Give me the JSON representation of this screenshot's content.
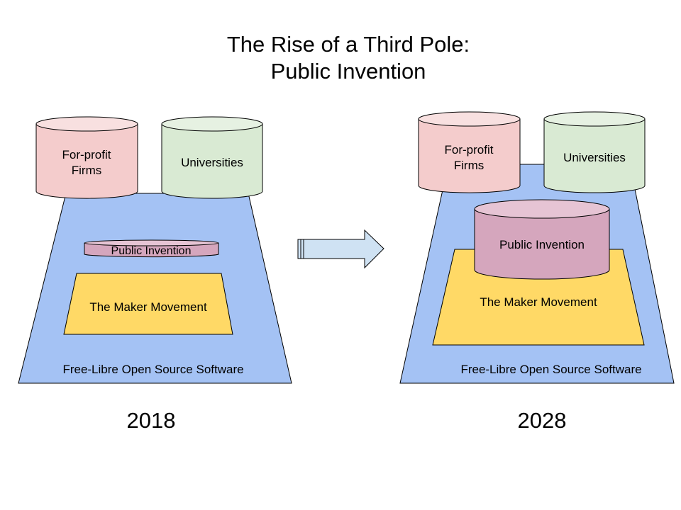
{
  "title": {
    "line1": "The Rise of a Third Pole:",
    "line2": "Public Invention"
  },
  "colors": {
    "foss_fill": "#a4c2f4",
    "maker_fill": "#ffd966",
    "public_invention_fill": "#d5a6bd",
    "for_profit_fill": "#f4cccc",
    "universities_fill": "#d9ead3",
    "arrow_fill": "#cfe2f3",
    "stroke": "#000000"
  },
  "left_panel": {
    "year": "2018",
    "foss_label": "Free-Libre Open Source Software",
    "maker_label": "The Maker Movement",
    "public_invention_label": "Public Invention",
    "for_profit_label_line1": "For-profit",
    "for_profit_label_line2": "Firms",
    "universities_label": "Universities"
  },
  "right_panel": {
    "year": "2028",
    "foss_label": "Free-Libre Open Source Software",
    "maker_label": "The Maker Movement",
    "public_invention_label": "Public Invention",
    "for_profit_label_line1": "For-profit",
    "for_profit_label_line2": "Firms",
    "universities_label": "Universities"
  },
  "arrow": {
    "icon": "right-arrow-icon"
  }
}
